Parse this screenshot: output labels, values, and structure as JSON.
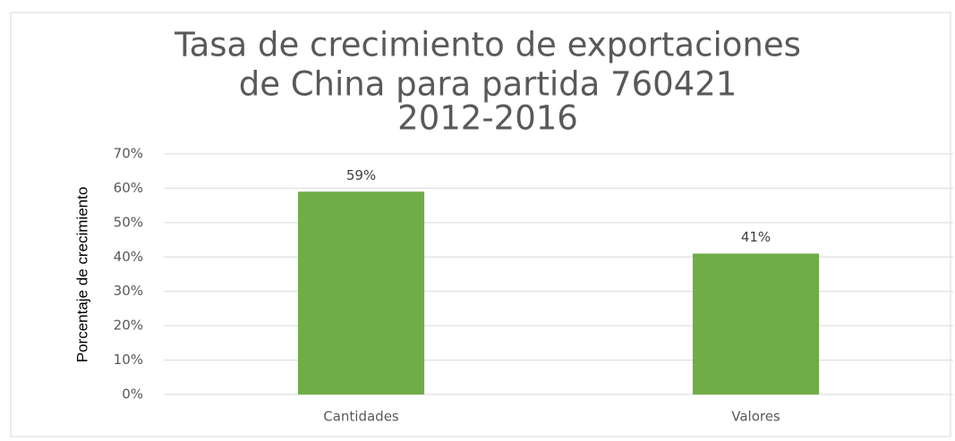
{
  "chart_data": {
    "type": "bar",
    "title": [
      "Tasa de crecimiento de exportaciones",
      "de China para partida 760421",
      "2012-2016"
    ],
    "y_axis_label": "Porcentaje de crecimiento",
    "categories": [
      "Cantidades",
      "Valores"
    ],
    "values": [
      59,
      41
    ],
    "value_labels": [
      "59%",
      "41%"
    ],
    "color": "#70ad47",
    "ylim": [
      0,
      70
    ],
    "yticks": [
      {
        "value": 0,
        "label": "0%"
      },
      {
        "value": 10,
        "label": "10%"
      },
      {
        "value": 20,
        "label": "20%"
      },
      {
        "value": 30,
        "label": "30%"
      },
      {
        "value": 40,
        "label": "40%"
      },
      {
        "value": 50,
        "label": "50%"
      },
      {
        "value": 60,
        "label": "60%"
      },
      {
        "value": 70,
        "label": "70%"
      }
    ],
    "grid": true
  }
}
